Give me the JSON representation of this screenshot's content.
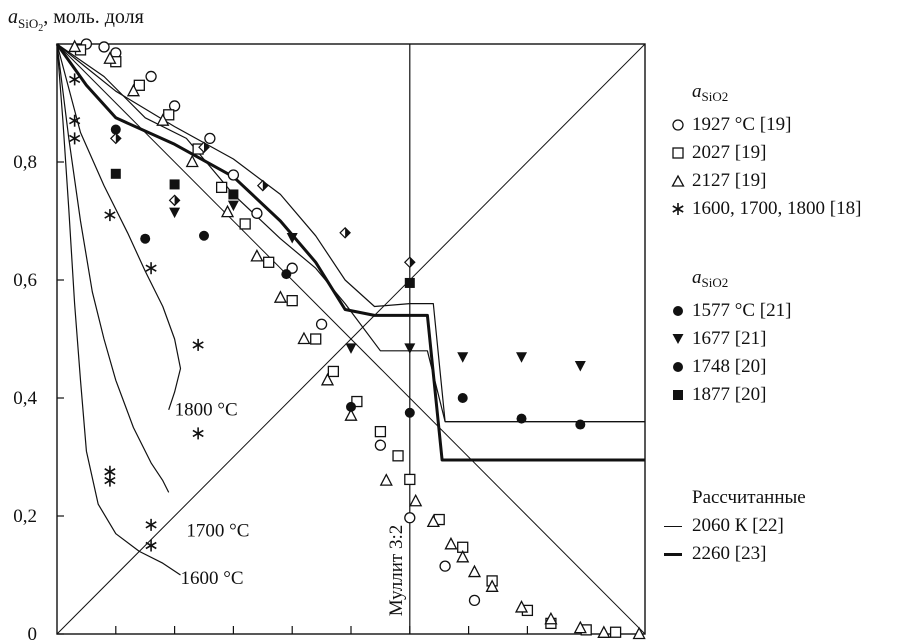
{
  "chart_data": {
    "type": "scatter",
    "ylabel": {
      "var": "a",
      "sub": "SiO",
      "sub2": "2",
      "unit": ", моль. доля"
    },
    "ylim": [
      0,
      1
    ],
    "xlim": [
      0,
      1
    ],
    "yticks": [
      {
        "value": 0,
        "label": "0"
      },
      {
        "value": 0.2,
        "label": "0,2"
      },
      {
        "value": 0.4,
        "label": "0,4"
      },
      {
        "value": 0.6,
        "label": "0,6"
      },
      {
        "value": 0.8,
        "label": "0,8"
      }
    ],
    "xtick_count": 10,
    "mullite_label": "Муллит 3:2",
    "mullite_x": 0.6,
    "curve_labels": [
      {
        "text": "1800 °C",
        "x": 0.2,
        "y": 0.37
      },
      {
        "text": "1700 °C",
        "x": 0.22,
        "y": 0.165
      },
      {
        "text": "1600 °C",
        "x": 0.21,
        "y": 0.085
      }
    ],
    "legend_group1": {
      "title_var": "a",
      "title_sub": "SiO",
      "title_sub2": "2",
      "items": [
        {
          "marker": "circle-open",
          "label": "1927 °C [19]"
        },
        {
          "marker": "square-open",
          "label": "2027 [19]"
        },
        {
          "marker": "triangle-open",
          "label": "2127 [19]"
        },
        {
          "marker": "asterisk",
          "label": "1600, 1700, 1800 [18]"
        }
      ]
    },
    "legend_group2": {
      "title_var": "a",
      "title_sub": "SiO",
      "title_sub2": "2",
      "items": [
        {
          "marker": "circle-filled",
          "label": "1577 °C [21]"
        },
        {
          "marker": "triangle-down-filled",
          "label": "1677 [21]"
        },
        {
          "marker": "circle-filled",
          "label": "1748 [20]"
        },
        {
          "marker": "square-filled",
          "label": "1877 [20]"
        }
      ]
    },
    "legend_calc": {
      "title": "Рассчитанные",
      "items": [
        {
          "style": "thin",
          "label": "2060 К [22]"
        },
        {
          "style": "thick",
          "label": "2260 [23]"
        }
      ]
    },
    "series": [
      {
        "marker": "circle-open",
        "points": [
          [
            0.05,
            1.0
          ],
          [
            0.08,
            0.995
          ],
          [
            0.1,
            0.985
          ],
          [
            0.16,
            0.945
          ],
          [
            0.2,
            0.895
          ],
          [
            0.26,
            0.84
          ],
          [
            0.3,
            0.778
          ],
          [
            0.34,
            0.713
          ],
          [
            0.4,
            0.62
          ],
          [
            0.45,
            0.525
          ],
          [
            0.55,
            0.32
          ],
          [
            0.6,
            0.197
          ],
          [
            0.66,
            0.115
          ],
          [
            0.71,
            0.057
          ]
        ]
      },
      {
        "marker": "square-open",
        "points": [
          [
            0.04,
            0.99
          ],
          [
            0.1,
            0.97
          ],
          [
            0.14,
            0.93
          ],
          [
            0.19,
            0.88
          ],
          [
            0.24,
            0.822
          ],
          [
            0.28,
            0.757
          ],
          [
            0.32,
            0.695
          ],
          [
            0.36,
            0.63
          ],
          [
            0.4,
            0.565
          ],
          [
            0.44,
            0.5
          ],
          [
            0.47,
            0.445
          ],
          [
            0.51,
            0.394
          ],
          [
            0.55,
            0.343
          ],
          [
            0.58,
            0.302
          ],
          [
            0.6,
            0.262
          ],
          [
            0.65,
            0.194
          ],
          [
            0.69,
            0.147
          ],
          [
            0.74,
            0.09
          ],
          [
            0.8,
            0.04
          ],
          [
            0.84,
            0.018
          ],
          [
            0.9,
            0.007
          ],
          [
            0.95,
            0.003
          ]
        ]
      },
      {
        "marker": "triangle-open",
        "points": [
          [
            0.03,
            0.995
          ],
          [
            0.09,
            0.975
          ],
          [
            0.13,
            0.92
          ],
          [
            0.18,
            0.87
          ],
          [
            0.23,
            0.8
          ],
          [
            0.29,
            0.715
          ],
          [
            0.34,
            0.64
          ],
          [
            0.38,
            0.57
          ],
          [
            0.42,
            0.5
          ],
          [
            0.46,
            0.43
          ],
          [
            0.5,
            0.37
          ],
          [
            0.56,
            0.26
          ],
          [
            0.61,
            0.225
          ],
          [
            0.64,
            0.19
          ],
          [
            0.67,
            0.152
          ],
          [
            0.69,
            0.13
          ],
          [
            0.71,
            0.105
          ],
          [
            0.74,
            0.08
          ],
          [
            0.79,
            0.045
          ],
          [
            0.84,
            0.025
          ],
          [
            0.89,
            0.01
          ],
          [
            0.93,
            0.002
          ],
          [
            0.99,
            0.0
          ]
        ]
      },
      {
        "marker": "asterisk",
        "points": [
          [
            0.03,
            0.94
          ],
          [
            0.03,
            0.87
          ],
          [
            0.03,
            0.84
          ],
          [
            0.09,
            0.71
          ],
          [
            0.16,
            0.62
          ],
          [
            0.24,
            0.49
          ],
          [
            0.24,
            0.34
          ],
          [
            0.09,
            0.275
          ],
          [
            0.09,
            0.26
          ],
          [
            0.16,
            0.185
          ],
          [
            0.16,
            0.15
          ]
        ]
      },
      {
        "marker": "circle-filled",
        "points": [
          [
            0.1,
            0.855
          ],
          [
            0.15,
            0.67
          ],
          [
            0.25,
            0.675
          ],
          [
            0.39,
            0.61
          ],
          [
            0.5,
            0.385
          ],
          [
            0.6,
            0.375
          ],
          [
            0.69,
            0.4
          ],
          [
            0.79,
            0.365
          ],
          [
            0.89,
            0.355
          ]
        ]
      },
      {
        "marker": "triangle-down-filled",
        "points": [
          [
            0.2,
            0.715
          ],
          [
            0.3,
            0.727
          ],
          [
            0.4,
            0.672
          ],
          [
            0.5,
            0.485
          ],
          [
            0.6,
            0.485
          ],
          [
            0.69,
            0.47
          ],
          [
            0.79,
            0.47
          ],
          [
            0.89,
            0.455
          ]
        ]
      },
      {
        "marker": "square-filled",
        "points": [
          [
            0.1,
            0.78
          ],
          [
            0.2,
            0.762
          ],
          [
            0.3,
            0.745
          ],
          [
            0.6,
            0.595
          ]
        ]
      },
      {
        "marker": "diamond-half",
        "points": [
          [
            0.1,
            0.84
          ],
          [
            0.2,
            0.735
          ],
          [
            0.25,
            0.825
          ],
          [
            0.35,
            0.76
          ],
          [
            0.49,
            0.68
          ],
          [
            0.6,
            0.63
          ]
        ]
      }
    ],
    "calc_lines": [
      {
        "style": "thin",
        "points": [
          [
            0,
            1
          ],
          [
            0.05,
            0.96
          ],
          [
            0.1,
            0.92
          ],
          [
            0.2,
            0.86
          ],
          [
            0.3,
            0.805
          ],
          [
            0.38,
            0.745
          ],
          [
            0.44,
            0.675
          ],
          [
            0.49,
            0.6
          ],
          [
            0.54,
            0.555
          ],
          [
            0.6,
            0.56
          ],
          [
            0.64,
            0.56
          ],
          [
            0.66,
            0.36
          ],
          [
            1,
            0.36
          ]
        ]
      },
      {
        "style": "thick",
        "points": [
          [
            0,
            1
          ],
          [
            0.05,
            0.93
          ],
          [
            0.1,
            0.875
          ],
          [
            0.2,
            0.83
          ],
          [
            0.3,
            0.775
          ],
          [
            0.38,
            0.7
          ],
          [
            0.44,
            0.63
          ],
          [
            0.49,
            0.55
          ],
          [
            0.54,
            0.54
          ],
          [
            0.6,
            0.54
          ],
          [
            0.63,
            0.54
          ],
          [
            0.655,
            0.295
          ],
          [
            1,
            0.295
          ]
        ]
      },
      {
        "style": "thin",
        "points": [
          [
            0,
            1
          ],
          [
            0.08,
            0.945
          ],
          [
            0.15,
            0.875
          ],
          [
            0.22,
            0.84
          ],
          [
            0.3,
            0.745
          ],
          [
            0.38,
            0.67
          ],
          [
            0.44,
            0.62
          ],
          [
            0.49,
            0.56
          ],
          [
            0.55,
            0.48
          ],
          [
            0.6,
            0.48
          ],
          [
            0.63,
            0.48
          ],
          [
            0.66,
            0.36
          ],
          [
            1,
            0.36
          ]
        ]
      },
      {
        "style": "thin",
        "points": [
          [
            0,
            1
          ],
          [
            0.04,
            0.85
          ],
          [
            0.08,
            0.76
          ],
          [
            0.12,
            0.68
          ],
          [
            0.15,
            0.615
          ],
          [
            0.18,
            0.555
          ],
          [
            0.2,
            0.5
          ],
          [
            0.21,
            0.45
          ],
          [
            0.2,
            0.41
          ],
          [
            0.19,
            0.38
          ]
        ]
      },
      {
        "style": "thin",
        "points": [
          [
            0,
            1
          ],
          [
            0.02,
            0.84
          ],
          [
            0.04,
            0.7
          ],
          [
            0.06,
            0.58
          ],
          [
            0.08,
            0.5
          ],
          [
            0.1,
            0.43
          ],
          [
            0.13,
            0.35
          ],
          [
            0.16,
            0.29
          ],
          [
            0.18,
            0.26
          ],
          [
            0.19,
            0.24
          ]
        ]
      },
      {
        "style": "thin",
        "points": [
          [
            0,
            1
          ],
          [
            0.01,
            0.87
          ],
          [
            0.02,
            0.72
          ],
          [
            0.03,
            0.56
          ],
          [
            0.04,
            0.43
          ],
          [
            0.05,
            0.31
          ],
          [
            0.07,
            0.22
          ],
          [
            0.1,
            0.17
          ],
          [
            0.14,
            0.14
          ],
          [
            0.18,
            0.12
          ],
          [
            0.21,
            0.1
          ]
        ]
      }
    ]
  }
}
